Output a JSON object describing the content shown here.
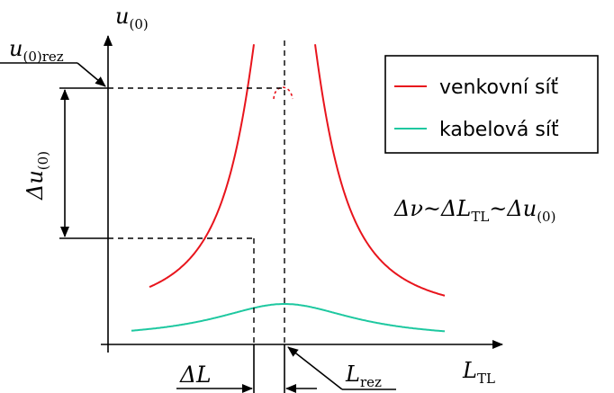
{
  "axes": {
    "y_label": "u",
    "y_label_sub": "(0)",
    "x_label": "L",
    "x_label_sub": "TL"
  },
  "labels": {
    "u0rez_main": "u",
    "u0rez_sub": "(0)rez",
    "delta_u_main": "Δu",
    "delta_u_sub": "(0)",
    "delta_L": "ΔL",
    "Lrez_main": "L",
    "Lrez_sub": "rez"
  },
  "relation": {
    "part1": "Δν~ΔL",
    "part1_sub": "TL",
    "part2": "~Δu",
    "part2_sub": "(0)"
  },
  "legend": {
    "items": [
      {
        "label": "venkovní síť",
        "color": "#e8141c"
      },
      {
        "label": "kabelová síť",
        "color": "#1ec8a0"
      }
    ]
  },
  "colors": {
    "overhead": "#e8141c",
    "cable": "#1ec8a0",
    "ink": "#000000"
  }
}
